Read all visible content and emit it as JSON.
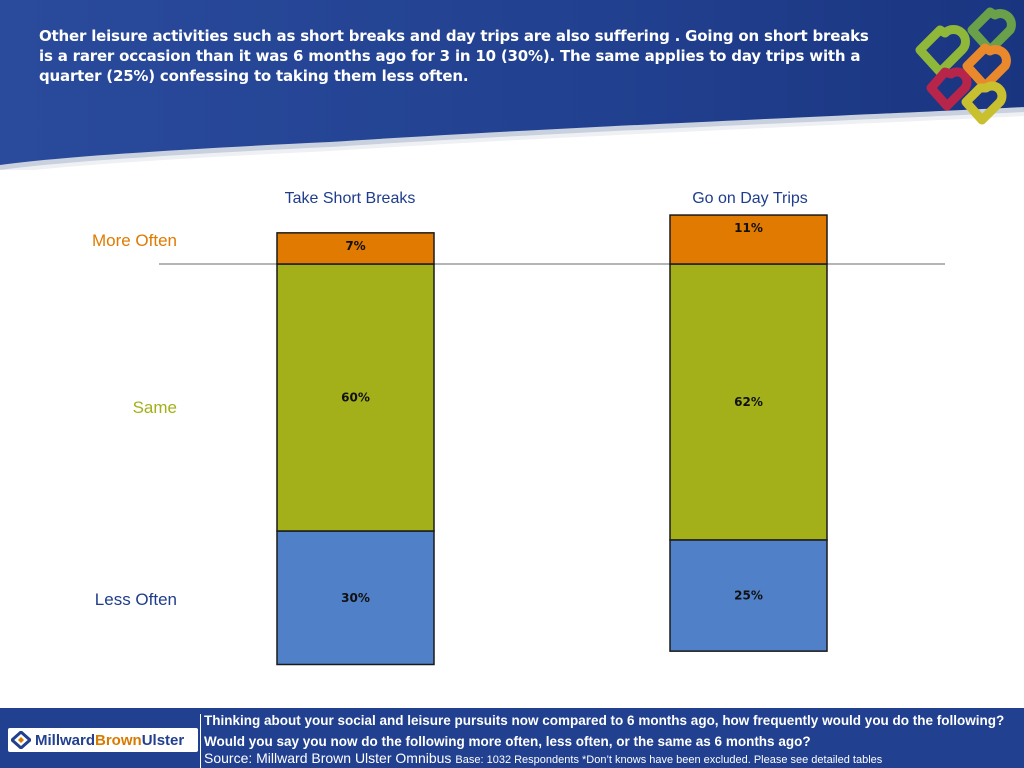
{
  "header": {
    "headline": "Other leisure activities such as short breaks and day trips are also suffering .  Going on short breaks is a rarer occasion than it was 6 months ago for 3 in 10 (30%).  The same applies to day trips with  a quarter (25%) confessing to taking them less often."
  },
  "colors": {
    "header_blue": "#21408f",
    "more_often": "#e07a00",
    "same": "#a3b019",
    "less_often": "#4f80c8",
    "title_blue": "#1f3d8c"
  },
  "chart_data": {
    "type": "bar",
    "stacked": true,
    "categories": [
      "Take Short Breaks",
      "Go on Day Trips"
    ],
    "series": [
      {
        "name": "Less Often",
        "values": [
          30,
          25
        ],
        "labels": [
          "30%",
          "25%"
        ]
      },
      {
        "name": "Same",
        "values": [
          60,
          62
        ],
        "labels": [
          "60%",
          "62%"
        ]
      },
      {
        "name": "More Often",
        "values": [
          7,
          11
        ],
        "labels": [
          "7%",
          "11%"
        ]
      }
    ],
    "row_labels": {
      "more_often": "More Often",
      "same": "Same",
      "less_often": "Less Often"
    },
    "baseline_reference": "More Often above line",
    "grid": false,
    "legend": "row labels on left"
  },
  "footer": {
    "brand_part1": "Millward",
    "brand_part2": "Brown",
    "brand_part3": "Ulster",
    "question": "Thinking about your social and leisure pursuits now compared to 6 months ago, how frequently would you do the following? Would you say you now do the following more often, less often, or the same as 6 months ago?",
    "source": "Source: Millward Brown Ulster Omnibus",
    "base_note": "Base: 1032 Respondents  *Don’t knows have been excluded.  Please see detailed tables"
  }
}
